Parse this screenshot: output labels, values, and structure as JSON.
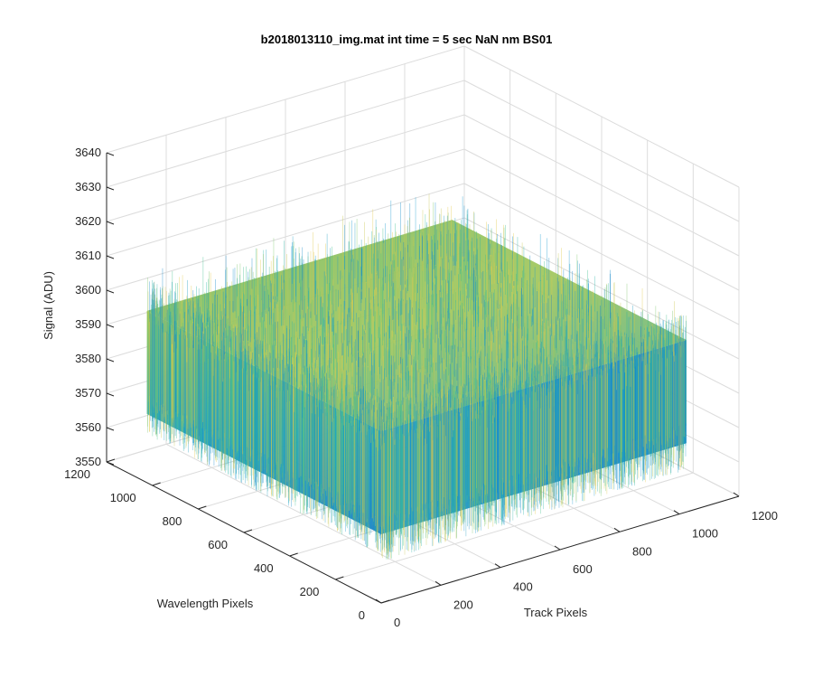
{
  "chart_data": {
    "type": "surface",
    "title": "b2018013110_img.mat int time = 5 sec  NaN nm BS01",
    "xlabel": "Track Pixels",
    "ylabel": "Wavelength Pixels",
    "zlabel": "Signal (ADU)",
    "xlim": [
      0,
      1200
    ],
    "ylim": [
      0,
      1200
    ],
    "zlim": [
      3550,
      3640
    ],
    "x_ticks": [
      "0",
      "200",
      "400",
      "600",
      "800",
      "1000",
      "1200"
    ],
    "y_ticks": [
      "0",
      "200",
      "400",
      "600",
      "800",
      "1000",
      "1200"
    ],
    "z_ticks": [
      "3550",
      "3560",
      "3570",
      "3580",
      "3590",
      "3600",
      "3610",
      "3620",
      "3630",
      "3640"
    ],
    "data_extent": {
      "x": [
        0,
        1024
      ],
      "y": [
        0,
        1024
      ]
    },
    "signal_mean": 3585,
    "signal_typical_range": [
      3570,
      3600
    ],
    "grid": true,
    "colormap": "parula",
    "colors": {
      "low": "#0072bd",
      "mid": "#2bb5a8",
      "high": "#e3c94a",
      "grid": "#dcdcdc",
      "axis": "#262626"
    }
  }
}
